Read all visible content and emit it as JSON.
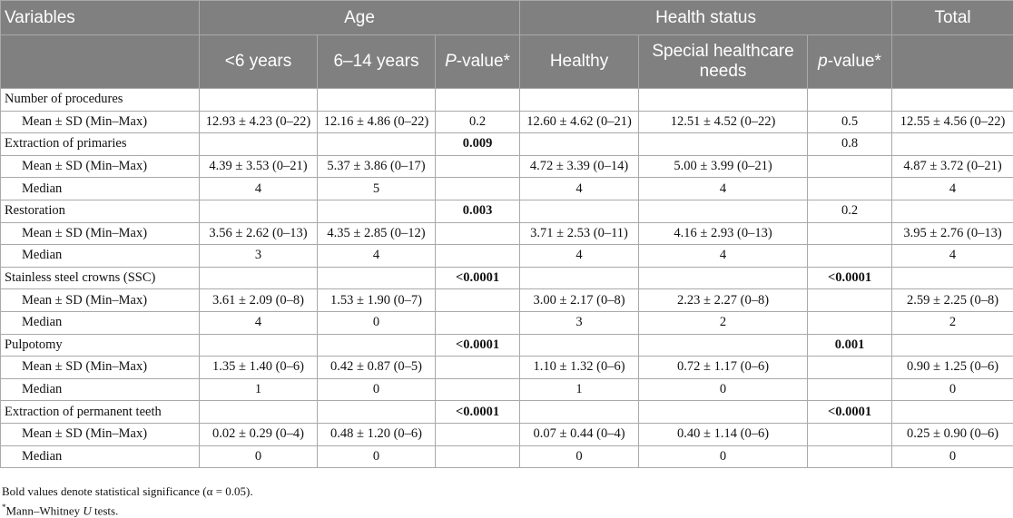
{
  "header": {
    "variables": "Variables",
    "age": "Age",
    "health_status": "Health status",
    "total": "Total",
    "lt6": "<6 years",
    "age614": "6–14 years",
    "pvalue_age_p": "P",
    "pvalue_age_rest": "-value*",
    "healthy": "Healthy",
    "special": "Special healthcare needs",
    "pvalue_health_p": "p",
    "pvalue_health_rest": "-value*"
  },
  "rows": [
    {
      "label": "Number of procedures",
      "type": "group",
      "lt6": "",
      "age614": "",
      "p_age": "",
      "p_age_sig": false,
      "healthy": "",
      "special": "",
      "p_health": "",
      "p_health_sig": false,
      "total": ""
    },
    {
      "label": "Mean ± SD (Min–Max)",
      "type": "sub",
      "lt6": "12.93 ± 4.23 (0–22)",
      "age614": "12.16 ± 4.86 (0–22)",
      "p_age": "0.2",
      "p_age_sig": false,
      "healthy": "12.60 ± 4.62 (0–21)",
      "special": "12.51 ± 4.52 (0–22)",
      "p_health": "0.5",
      "p_health_sig": false,
      "total": "12.55 ± 4.56 (0–22)"
    },
    {
      "label": "Extraction of primaries",
      "type": "group",
      "lt6": "",
      "age614": "",
      "p_age": "0.009",
      "p_age_sig": true,
      "healthy": "",
      "special": "",
      "p_health": "0.8",
      "p_health_sig": false,
      "total": ""
    },
    {
      "label": "Mean ± SD (Min–Max)",
      "type": "sub",
      "lt6": "4.39 ± 3.53 (0–21)",
      "age614": "5.37 ± 3.86 (0–17)",
      "p_age": "",
      "p_age_sig": false,
      "healthy": "4.72 ± 3.39 (0–14)",
      "special": "5.00 ± 3.99 (0–21)",
      "p_health": "",
      "p_health_sig": false,
      "total": "4.87 ± 3.72 (0–21)"
    },
    {
      "label": "Median",
      "type": "sub",
      "lt6": "4",
      "age614": "5",
      "p_age": "",
      "p_age_sig": false,
      "healthy": "4",
      "special": "4",
      "p_health": "",
      "p_health_sig": false,
      "total": "4"
    },
    {
      "label": "Restoration",
      "type": "group",
      "lt6": "",
      "age614": "",
      "p_age": "0.003",
      "p_age_sig": true,
      "healthy": "",
      "special": "",
      "p_health": "0.2",
      "p_health_sig": false,
      "total": ""
    },
    {
      "label": "Mean ± SD (Min–Max)",
      "type": "sub",
      "lt6": "3.56 ± 2.62 (0–13)",
      "age614": "4.35 ± 2.85 (0–12)",
      "p_age": "",
      "p_age_sig": false,
      "healthy": "3.71 ± 2.53 (0–11)",
      "special": "4.16 ± 2.93 (0–13)",
      "p_health": "",
      "p_health_sig": false,
      "total": "3.95 ± 2.76 (0–13)"
    },
    {
      "label": "Median",
      "type": "sub",
      "lt6": "3",
      "age614": "4",
      "p_age": "",
      "p_age_sig": false,
      "healthy": "4",
      "special": "4",
      "p_health": "",
      "p_health_sig": false,
      "total": "4"
    },
    {
      "label": "Stainless steel crowns (SSC)",
      "type": "group",
      "lt6": "",
      "age614": "",
      "p_age": "<0.0001",
      "p_age_sig": true,
      "healthy": "",
      "special": "",
      "p_health": "<0.0001",
      "p_health_sig": true,
      "total": ""
    },
    {
      "label": "Mean ± SD (Min–Max)",
      "type": "sub",
      "lt6": "3.61 ± 2.09 (0–8)",
      "age614": "1.53 ± 1.90 (0–7)",
      "p_age": "",
      "p_age_sig": false,
      "healthy": "3.00 ± 2.17 (0–8)",
      "special": "2.23 ± 2.27 (0–8)",
      "p_health": "",
      "p_health_sig": false,
      "total": "2.59 ± 2.25 (0–8)"
    },
    {
      "label": "Median",
      "type": "sub",
      "lt6": "4",
      "age614": "0",
      "p_age": "",
      "p_age_sig": false,
      "healthy": "3",
      "special": "2",
      "p_health": "",
      "p_health_sig": false,
      "total": "2"
    },
    {
      "label": "Pulpotomy",
      "type": "group",
      "lt6": "",
      "age614": "",
      "p_age": "<0.0001",
      "p_age_sig": true,
      "healthy": "",
      "special": "",
      "p_health": "0.001",
      "p_health_sig": true,
      "total": ""
    },
    {
      "label": "Mean ± SD (Min–Max)",
      "type": "sub",
      "lt6": "1.35 ± 1.40 (0–6)",
      "age614": "0.42 ± 0.87 (0–5)",
      "p_age": "",
      "p_age_sig": false,
      "healthy": "1.10 ± 1.32 (0–6)",
      "special": "0.72 ± 1.17 (0–6)",
      "p_health": "",
      "p_health_sig": false,
      "total": "0.90 ± 1.25 (0–6)"
    },
    {
      "label": "Median",
      "type": "sub",
      "lt6": "1",
      "age614": "0",
      "p_age": "",
      "p_age_sig": false,
      "healthy": "1",
      "special": "0",
      "p_health": "",
      "p_health_sig": false,
      "total": "0"
    },
    {
      "label": "Extraction of permanent teeth",
      "type": "group",
      "lt6": "",
      "age614": "",
      "p_age": "<0.0001",
      "p_age_sig": true,
      "healthy": "",
      "special": "",
      "p_health": "<0.0001",
      "p_health_sig": true,
      "total": ""
    },
    {
      "label": "Mean ± SD (Min–Max)",
      "type": "sub",
      "lt6": "0.02 ± 0.29 (0–4)",
      "age614": "0.48 ± 1.20 (0–6)",
      "p_age": "",
      "p_age_sig": false,
      "healthy": "0.07 ± 0.44 (0–4)",
      "special": "0.40 ± 1.14 (0–6)",
      "p_health": "",
      "p_health_sig": false,
      "total": "0.25 ± 0.90 (0–6)"
    },
    {
      "label": "Median",
      "type": "sub",
      "lt6": "0",
      "age614": "0",
      "p_age": "",
      "p_age_sig": false,
      "healthy": "0",
      "special": "0",
      "p_health": "",
      "p_health_sig": false,
      "total": "0"
    }
  ],
  "footnotes": {
    "bold_note": "Bold values denote statistical significance (α = 0.05).",
    "mw_star": "*",
    "mw_pre": "Mann–Whitney ",
    "mw_u": "U",
    "mw_post": " tests."
  }
}
